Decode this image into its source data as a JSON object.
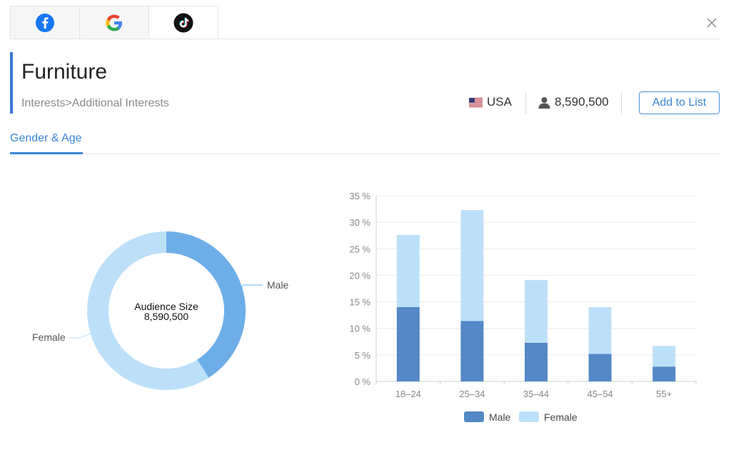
{
  "tabs": [
    {
      "name": "facebook",
      "icon": "facebook-icon",
      "color": "#1877f2"
    },
    {
      "name": "google",
      "icon": "google-icon"
    },
    {
      "name": "tiktok",
      "icon": "tiktok-icon",
      "active": true
    }
  ],
  "header": {
    "title": "Furniture",
    "breadcrumb": "Interests>Additional Interests",
    "country": "USA",
    "audience": "8,590,500",
    "add_button": "Add to List"
  },
  "subtab": {
    "label": "Gender & Age"
  },
  "donut": {
    "center_title": "Audience Size",
    "center_value": "8,590,500",
    "male_label": "Male",
    "female_label": "Female",
    "male_share": 0.41,
    "colors": {
      "male": "#6eaee8",
      "female": "#bde0f9"
    }
  },
  "chart_data": {
    "type": "bar",
    "stacked": true,
    "categories": [
      "18–24",
      "25–34",
      "35–44",
      "45–54",
      "55+"
    ],
    "series": [
      {
        "name": "Male",
        "values": [
          14.0,
          11.4,
          7.3,
          5.2,
          2.8
        ],
        "color": "#5488c6"
      },
      {
        "name": "Female",
        "values": [
          13.6,
          20.9,
          11.8,
          8.8,
          3.9
        ],
        "color": "#bde0f9"
      }
    ],
    "ylim": [
      0,
      35
    ],
    "yticks": [
      "0 %",
      "5 %",
      "10 %",
      "15 %",
      "20 %",
      "25 %",
      "30 %",
      "35 %"
    ],
    "grid": true,
    "legend_position": "bottom"
  }
}
